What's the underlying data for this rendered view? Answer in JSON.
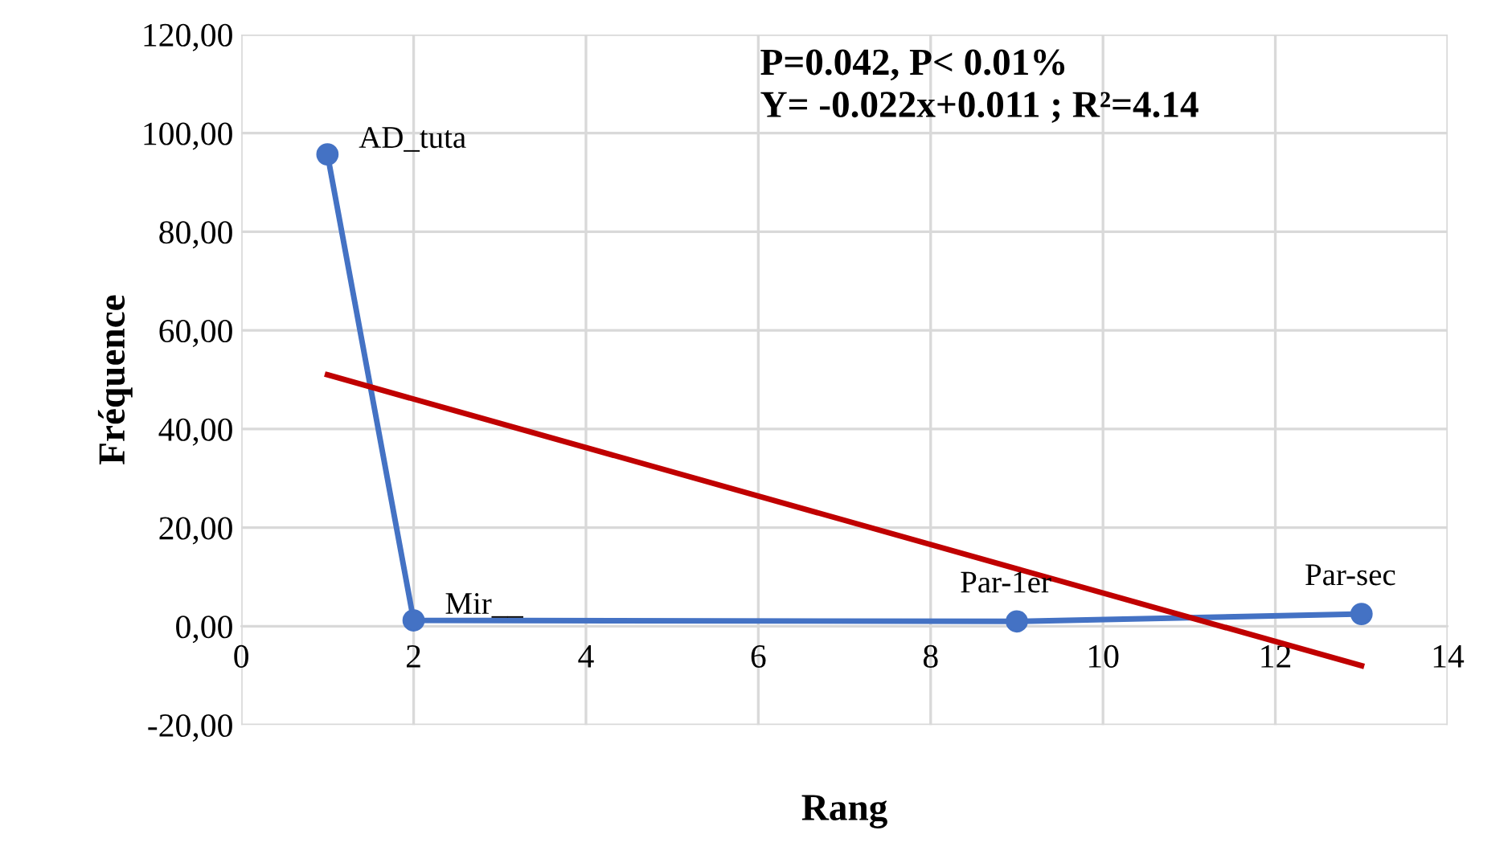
{
  "chart_data": {
    "type": "line",
    "xlabel": "Rang",
    "ylabel": "Fréquence",
    "series": [
      {
        "color": "#4472c4",
        "x": [
          1,
          2,
          9,
          13
        ],
        "values": [
          95.7,
          1.2,
          1.0,
          2.5
        ],
        "marker": "circle"
      },
      {
        "color": "#c00000",
        "x": [
          1,
          13
        ],
        "values": [
          51,
          -8
        ],
        "marker": "none"
      }
    ],
    "xlim": [
      0,
      14
    ],
    "xticks": [
      0,
      2,
      4,
      6,
      8,
      10,
      12,
      14
    ],
    "ylim": [
      -20,
      120
    ],
    "yticks": [
      {
        "value": -20,
        "label": "-20,00"
      },
      {
        "value": 0,
        "label": "0,00"
      },
      {
        "value": 20,
        "label": "20,00"
      },
      {
        "value": 40,
        "label": "40,00"
      },
      {
        "value": 60,
        "label": "60,00"
      },
      {
        "value": 80,
        "label": "80,00"
      },
      {
        "value": 100,
        "label": "100,00"
      },
      {
        "value": 120,
        "label": "120,00"
      }
    ],
    "grid": true,
    "legend": false,
    "annotations": [
      {
        "text": "AD_tuta",
        "x": 1,
        "y": 95.7
      },
      {
        "text": "Mir__",
        "x": 2,
        "y": 1.2
      },
      {
        "text": "Par-1er",
        "x": 9,
        "y": 1.0
      },
      {
        "text": "Par-sec",
        "x": 13,
        "y": 2.5
      },
      "P=0.042, P< 0.01%\nY= -0.022x+0.011 ; R²=4.14"
    ]
  }
}
